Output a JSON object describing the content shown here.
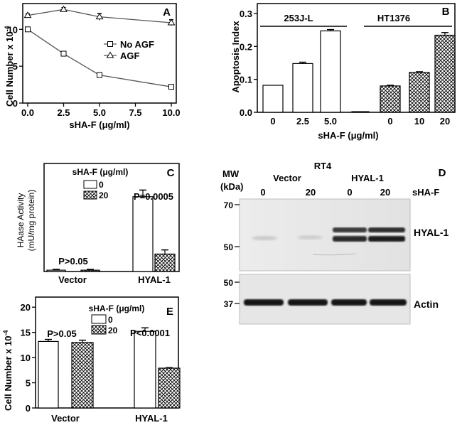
{
  "panels": {
    "A": {
      "letter": "A",
      "ylabel_main": "Cell Number x 10",
      "ylabel_exp": "-4",
      "xlabel": "sHA-F (μg/ml)",
      "xticks": [
        "0.0",
        "2.5",
        "5.0",
        "7.5",
        "10.0"
      ],
      "yticks": [
        "0",
        "5",
        "10"
      ],
      "legend": [
        "No AGF",
        "AGF"
      ]
    },
    "B": {
      "letter": "B",
      "ylabel": "Apoptosis Index",
      "xlabel": "sHA-F (μg/ml)",
      "yticks": [
        "0.0",
        "0.1",
        "0.2",
        "0.3"
      ],
      "groups": [
        "253J-L",
        "HT1376"
      ],
      "xticks": [
        "0",
        "2.5",
        "5.0",
        "0",
        "10",
        "20"
      ]
    },
    "C": {
      "letter": "C",
      "ylabel_line1": "HAase Activity",
      "ylabel_line2": "(mU/mg protein)",
      "legend_title": "sHA-F (μg/ml)",
      "legend": [
        "0",
        "20"
      ],
      "categories": [
        "Vector",
        "HYAL-1"
      ],
      "pvalues": [
        "P>0.05",
        "P=0.0005"
      ]
    },
    "D": {
      "letter": "D",
      "mw": "MW",
      "kda": "(kDa)",
      "cell_line": "RT4",
      "groups": [
        "Vector",
        "HYAL-1"
      ],
      "lanes": [
        "0",
        "20",
        "0",
        "20"
      ],
      "treatment": "sHA-F",
      "markers_top": [
        "70",
        "50"
      ],
      "markers_bottom": [
        "50",
        "37"
      ],
      "band_top": "HYAL-1",
      "band_bottom": "Actin"
    },
    "E": {
      "letter": "E",
      "ylabel_main": "Cell Number x 10",
      "ylabel_exp": "-4",
      "yticks": [
        "0",
        "5",
        "10",
        "15",
        "20"
      ],
      "legend_title": "sHA-F (μg/ml)",
      "legend": [
        "0",
        "20"
      ],
      "categories": [
        "Vector",
        "HYAL-1"
      ],
      "pvalues": [
        "P>0.05",
        "P<0.0001"
      ]
    }
  },
  "chart_data": [
    {
      "panel": "A",
      "type": "line",
      "xlabel": "sHA-F (μg/ml)",
      "ylabel": "Cell Number x 10-4",
      "xlim": [
        0,
        10
      ],
      "ylim": [
        0,
        13.5
      ],
      "x": [
        0,
        2.5,
        5,
        10
      ],
      "series": [
        {
          "name": "No AGF",
          "marker": "square",
          "values": [
            10,
            6.7,
            3.8,
            2.2
          ],
          "errors": [
            0.25,
            0.2,
            0.2,
            0.25
          ]
        },
        {
          "name": "AGF",
          "marker": "triangle",
          "values": [
            11.9,
            12.7,
            11.7,
            10.9
          ],
          "errors": [
            0.2,
            0.25,
            0.45,
            0.4
          ]
        }
      ]
    },
    {
      "panel": "B",
      "type": "bar",
      "ylabel": "Apoptosis Index",
      "xlabel": "sHA-F (μg/ml)",
      "ylim": [
        0,
        0.33
      ],
      "groups": [
        {
          "name": "253J-L",
          "categories": [
            "0",
            "2.5",
            "5.0"
          ],
          "values": [
            0.082,
            0.148,
            0.247
          ],
          "errors": [
            0,
            0.004,
            0.004
          ],
          "pattern": "open"
        },
        {
          "name": "HT1376",
          "categories": [
            "",
            "0",
            "10",
            "20"
          ],
          "values": [
            0.002,
            0.08,
            0.121,
            0.234
          ],
          "errors": [
            0,
            0.002,
            0.002,
            0.008
          ],
          "pattern": [
            "open",
            "crosshatch",
            "crosshatch",
            "crosshatch"
          ]
        }
      ]
    },
    {
      "panel": "C",
      "type": "bar",
      "ylabel": "HAase Activity (mU/mg protein)",
      "ylim": [
        0,
        6.5
      ],
      "categories": [
        "Vector",
        "HYAL-1"
      ],
      "series": [
        {
          "name": "0",
          "values": [
            0.08,
            4.5
          ],
          "errors": [
            0.05,
            0.4
          ]
        },
        {
          "name": "20",
          "values": [
            0.08,
            1.05
          ],
          "errors": [
            0.05,
            0.25
          ]
        }
      ],
      "annotations": [
        "P>0.05",
        "P=0.0005"
      ]
    },
    {
      "panel": "E",
      "type": "bar",
      "ylabel": "Cell Number x 10-4",
      "ylim": [
        0,
        22
      ],
      "categories": [
        "Vector",
        "HYAL-1"
      ],
      "series": [
        {
          "name": "0",
          "values": [
            13.2,
            15.2
          ],
          "errors": [
            0.4,
            0.7
          ]
        },
        {
          "name": "20",
          "values": [
            13.0,
            7.9
          ],
          "errors": [
            0.45,
            0.1
          ]
        }
      ],
      "annotations": [
        "P>0.05",
        "P<0.0001"
      ]
    }
  ]
}
